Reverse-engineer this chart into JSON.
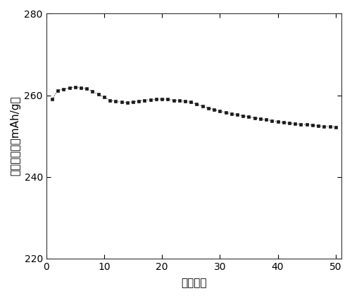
{
  "x": [
    1,
    2,
    3,
    4,
    5,
    6,
    7,
    8,
    9,
    10,
    11,
    12,
    13,
    14,
    15,
    16,
    17,
    18,
    19,
    20,
    21,
    22,
    23,
    24,
    25,
    26,
    27,
    28,
    29,
    30,
    31,
    32,
    33,
    34,
    35,
    36,
    37,
    38,
    39,
    40,
    41,
    42,
    43,
    44,
    45,
    46,
    47,
    48,
    49,
    50
  ],
  "y": [
    259.0,
    261.2,
    261.5,
    261.8,
    262.0,
    261.8,
    261.6,
    261.0,
    260.2,
    259.5,
    258.8,
    258.5,
    258.3,
    258.2,
    258.4,
    258.6,
    258.8,
    258.9,
    259.0,
    259.1,
    259.0,
    258.8,
    258.7,
    258.5,
    258.3,
    257.8,
    257.3,
    256.9,
    256.5,
    256.1,
    255.8,
    255.5,
    255.2,
    255.0,
    254.7,
    254.5,
    254.2,
    254.0,
    253.8,
    253.5,
    253.3,
    253.2,
    253.0,
    252.9,
    252.8,
    252.7,
    252.5,
    252.4,
    252.3,
    252.2
  ],
  "xlabel": "循环次数",
  "ylabel": "放电比容量（mAh/g）",
  "xlim": [
    0,
    51
  ],
  "ylim": [
    220,
    280
  ],
  "xticks": [
    0,
    10,
    20,
    30,
    40,
    50
  ],
  "yticks": [
    220,
    240,
    260,
    280
  ],
  "color": "#1a1a1a",
  "marker": "s",
  "markersize": 2.8,
  "linestyle": ":",
  "linewidth": 0.8,
  "bg_color": "#ffffff",
  "tick_labelsize": 10,
  "xlabel_fontsize": 11,
  "ylabel_fontsize": 11
}
